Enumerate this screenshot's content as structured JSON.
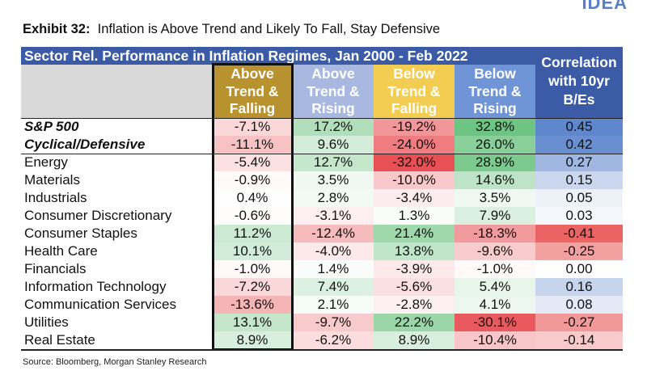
{
  "brand": "IDEA",
  "exhibit": {
    "label": "Exhibit 32:",
    "title": "Inflation is Above Trend and Likely To Fall, Stay Defensive"
  },
  "table": {
    "header_title": "Sector Rel. Performance in Inflation Regimes, Jan 2000 - Feb 2022",
    "columns": [
      {
        "label": "Above\nTrend &\nFalling",
        "color": "#b8922e"
      },
      {
        "label": "Above\nTrend &\nRising",
        "color": "#a8b8e0"
      },
      {
        "label": "Below\nTrend &\nFalling",
        "color": "#f2cd52"
      },
      {
        "label": "Below\nTrend &\nRising",
        "color": "#6f95d6"
      }
    ],
    "corr_header": "Correlation\nwith 10yr\nB/Es",
    "rows": [
      {
        "name": "S&P 500",
        "bold": true,
        "values": [
          "-7.1%",
          "17.2%",
          "-19.2%",
          "32.8%"
        ],
        "corr": "0.45"
      },
      {
        "name": "Cyclical/Defensive",
        "bold": true,
        "values": [
          "-11.1%",
          "9.6%",
          "-24.0%",
          "26.0%"
        ],
        "corr": "0.42"
      },
      {
        "name": "Energy",
        "bold": false,
        "values": [
          "-5.4%",
          "12.7%",
          "-32.0%",
          "28.9%"
        ],
        "corr": "0.27"
      },
      {
        "name": "Materials",
        "bold": false,
        "values": [
          "-0.9%",
          "3.5%",
          "-10.0%",
          "14.6%"
        ],
        "corr": "0.15"
      },
      {
        "name": "Industrials",
        "bold": false,
        "values": [
          "0.4%",
          "2.8%",
          "-3.4%",
          "3.5%"
        ],
        "corr": "0.05"
      },
      {
        "name": "Consumer Discretionary",
        "bold": false,
        "values": [
          "-0.6%",
          "-3.1%",
          "1.3%",
          "7.9%"
        ],
        "corr": "0.03"
      },
      {
        "name": "Consumer Staples",
        "bold": false,
        "values": [
          "11.2%",
          "-12.4%",
          "21.4%",
          "-18.3%"
        ],
        "corr": "-0.41"
      },
      {
        "name": "Health Care",
        "bold": false,
        "values": [
          "10.1%",
          "-4.0%",
          "13.8%",
          "-9.6%"
        ],
        "corr": "-0.25"
      },
      {
        "name": "Financials",
        "bold": false,
        "values": [
          "-1.0%",
          "1.4%",
          "-3.9%",
          "-1.0%"
        ],
        "corr": "0.00"
      },
      {
        "name": "Information Technology",
        "bold": false,
        "values": [
          "-7.2%",
          "7.4%",
          "-5.6%",
          "5.4%"
        ],
        "corr": "0.16"
      },
      {
        "name": "Communication Services",
        "bold": false,
        "values": [
          "-13.6%",
          "2.1%",
          "-2.8%",
          "4.1%"
        ],
        "corr": "0.08"
      },
      {
        "name": "Utilities",
        "bold": false,
        "values": [
          "13.1%",
          "-9.7%",
          "22.2%",
          "-30.1%"
        ],
        "corr": "-0.27"
      },
      {
        "name": "Real Estate",
        "bold": false,
        "values": [
          "8.9%",
          "-6.2%",
          "8.9%",
          "-10.4%"
        ],
        "corr": "-0.14"
      }
    ]
  },
  "source": "Source: Bloomberg, Morgan Stanley Research"
}
